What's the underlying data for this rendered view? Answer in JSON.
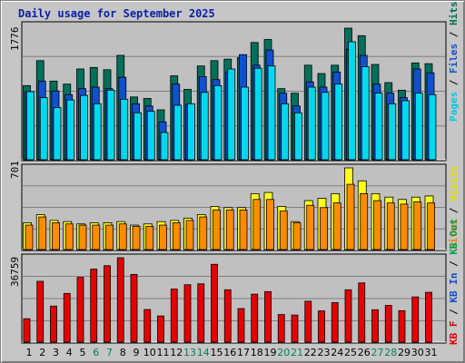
{
  "title": "Daily usage for September 2025",
  "panels": {
    "top": {
      "max_label": "1776",
      "labels": [
        {
          "text": "Pages",
          "color": "#00c8e6"
        },
        {
          "text": " / ",
          "color": "#000000"
        },
        {
          "text": "Files",
          "color": "#1050d0"
        },
        {
          "text": " / ",
          "color": "#000000"
        },
        {
          "text": "Hits",
          "color": "#00705a"
        }
      ]
    },
    "middle": {
      "max_label": "701",
      "labels": [
        {
          "text": "Sites",
          "color": "#f08000"
        },
        {
          "text": " / ",
          "color": "#000000"
        },
        {
          "text": "Visits",
          "color": "#e0e000"
        }
      ]
    },
    "bottom": {
      "max_label": "36759",
      "labels": [
        {
          "text": "KB F",
          "color": "#e00000"
        },
        {
          "text": " / ",
          "color": "#000000"
        },
        {
          "text": "KB In",
          "color": "#1050d0"
        },
        {
          "text": " / ",
          "color": "#000000"
        },
        {
          "text": "KB Out",
          "color": "#00a050"
        }
      ]
    }
  },
  "colors": {
    "hits": "#00705a",
    "files": "#1050d0",
    "pages": "#00d8f0",
    "visits": "#ffff20",
    "sites": "#ff8c00",
    "kbf": "#e60000",
    "weekday_label": "#000000",
    "weekend_label": "#008060"
  },
  "chart_data": {
    "type": "bar",
    "x_days": [
      "1",
      "2",
      "3",
      "4",
      "5",
      "6",
      "7",
      "8",
      "9",
      "10",
      "11",
      "12",
      "13",
      "14",
      "15",
      "16",
      "17",
      "18",
      "19",
      "20",
      "21",
      "22",
      "23",
      "24",
      "25",
      "26",
      "27",
      "28",
      "29",
      "30",
      "31"
    ],
    "weekend_days": [
      "6",
      "7",
      "13",
      "14",
      "20",
      "21",
      "27",
      "28"
    ],
    "usage": {
      "ymax": 1776,
      "hits": [
        980,
        1310,
        1040,
        1000,
        1200,
        1220,
        1190,
        1380,
        830,
        810,
        660,
        1110,
        930,
        1240,
        1310,
        1330,
        1350,
        1550,
        1590,
        940,
        880,
        1250,
        1140,
        1250,
        1740,
        1640,
        1260,
        1020,
        920,
        1280,
        1270
      ],
      "files": [
        900,
        1040,
        910,
        860,
        940,
        960,
        940,
        1090,
        740,
        710,
        500,
        1000,
        730,
        1100,
        1060,
        1160,
        1390,
        1250,
        1450,
        880,
        710,
        1030,
        960,
        1160,
        1460,
        1380,
        1000,
        880,
        820,
        1200,
        1150
      ],
      "pages": [
        900,
        820,
        690,
        790,
        850,
        740,
        920,
        800,
        620,
        640,
        360,
        720,
        740,
        890,
        980,
        1200,
        960,
        1210,
        1240,
        740,
        620,
        960,
        890,
        1000,
        1560,
        1230,
        880,
        740,
        780,
        880,
        860
      ]
    },
    "visits_sites": {
      "ymax": 701,
      "visits": [
        230,
        300,
        250,
        240,
        220,
        230,
        230,
        240,
        210,
        220,
        240,
        250,
        270,
        300,
        370,
        360,
        360,
        480,
        490,
        370,
        240,
        420,
        440,
        480,
        701,
        590,
        480,
        450,
        430,
        450,
        460
      ],
      "sites": [
        210,
        280,
        230,
        220,
        210,
        210,
        210,
        220,
        200,
        200,
        210,
        230,
        250,
        280,
        340,
        340,
        340,
        430,
        430,
        330,
        230,
        380,
        360,
        400,
        560,
        480,
        420,
        400,
        390,
        410,
        400
      ]
    },
    "kbytes": {
      "ymax": 36759,
      "kbf": [
        10200,
        26500,
        15700,
        21200,
        28200,
        31800,
        33300,
        36759,
        29500,
        14200,
        11400,
        23100,
        25000,
        25400,
        33900,
        22800,
        14600,
        20900,
        22000,
        12000,
        11800,
        17800,
        13600,
        17200,
        22800,
        25800,
        14100,
        16000,
        13700,
        19700,
        21700
      ]
    }
  }
}
